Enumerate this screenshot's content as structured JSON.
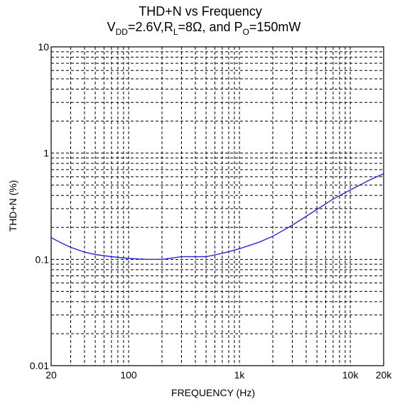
{
  "chart_data": {
    "type": "line",
    "title_line1": "THD+N vs Frequency",
    "title_line2": {
      "v": "V",
      "v_sub": "DD",
      "v_rest": "=2.6V,R",
      "r_sub": "L",
      "r_rest": "=8Ω, and P",
      "p_sub": "O",
      "p_rest": "=150mW"
    },
    "xlabel": "FREQUENCY (Hz)",
    "ylabel": "THD+N (%)",
    "x_scale": "log",
    "y_scale": "log",
    "xlim": [
      20,
      20000
    ],
    "ylim": [
      0.01,
      10
    ],
    "grid": true,
    "x_ticks": [
      {
        "value": 20,
        "label": "20"
      },
      {
        "value": 100,
        "label": "100"
      },
      {
        "value": 1000,
        "label": "1k"
      },
      {
        "value": 10000,
        "label": "10k"
      },
      {
        "value": 20000,
        "label": "20k"
      }
    ],
    "y_ticks": [
      {
        "value": 0.01,
        "label": "0.01"
      },
      {
        "value": 0.1,
        "label": "0.1"
      },
      {
        "value": 1,
        "label": "1"
      },
      {
        "value": 10,
        "label": "10"
      }
    ],
    "series": [
      {
        "color": "#2a2ad6",
        "x": [
          20,
          25,
          30,
          40,
          50,
          70,
          100,
          150,
          200,
          300,
          500,
          700,
          1000,
          1500,
          2000,
          3000,
          5000,
          7000,
          10000,
          15000,
          20000
        ],
        "y": [
          0.16,
          0.142,
          0.13,
          0.117,
          0.111,
          0.106,
          0.102,
          0.1,
          0.1,
          0.106,
          0.106,
          0.114,
          0.126,
          0.145,
          0.165,
          0.21,
          0.295,
          0.37,
          0.45,
          0.56,
          0.64
        ]
      }
    ]
  }
}
